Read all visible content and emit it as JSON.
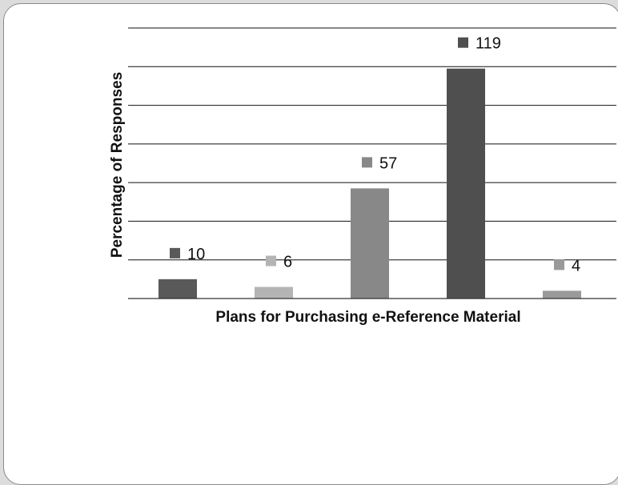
{
  "chart_data": {
    "type": "bar",
    "title": "",
    "xlabel": "Plans for Purchasing e-Reference Material",
    "ylabel": "Percentage of Responses",
    "ylim": [
      0,
      140
    ],
    "grid": true,
    "series": [
      {
        "value": 10,
        "label": "10",
        "color": "#595959"
      },
      {
        "value": 6,
        "label": "6",
        "color": "#b4b4b4"
      },
      {
        "value": 57,
        "label": "57",
        "color": "#888888"
      },
      {
        "value": 119,
        "label": "119",
        "color": "#4f4f4f"
      },
      {
        "value": 4,
        "label": "4",
        "color": "#9a9a9a"
      }
    ]
  }
}
